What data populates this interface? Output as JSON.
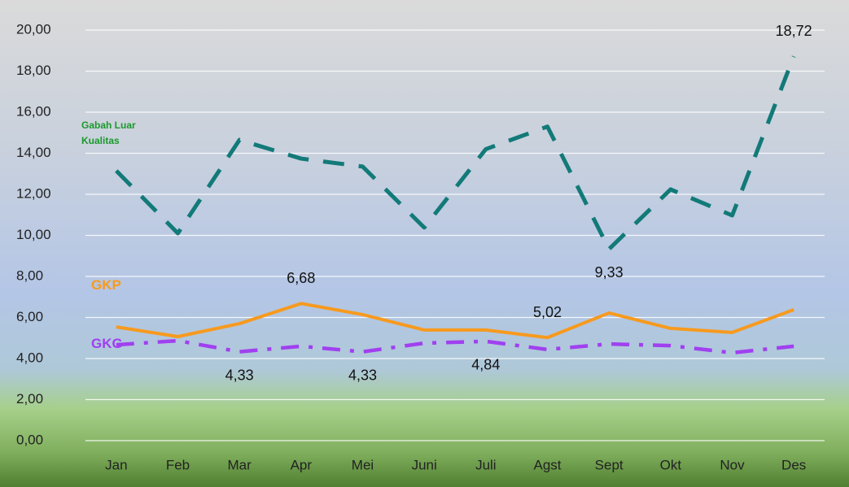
{
  "chart_data": {
    "type": "line",
    "categories": [
      "Jan",
      "Feb",
      "Mar",
      "Apr",
      "Mei",
      "Juni",
      "Juli",
      "Agst",
      "Sept",
      "Okt",
      "Nov",
      "Des"
    ],
    "series": [
      {
        "name": "Gabah Luar Kualitas",
        "color": "#127a78",
        "dash": "dashed",
        "values": [
          13.15,
          10.1,
          14.65,
          13.74,
          13.35,
          10.38,
          14.2,
          15.3,
          9.33,
          12.24,
          10.97,
          18.72
        ],
        "value_labels": [
          null,
          null,
          null,
          null,
          null,
          null,
          null,
          null,
          "9,33",
          null,
          null,
          "18,72"
        ]
      },
      {
        "name": "GKP",
        "color": "#f79a1e",
        "dash": "solid",
        "values": [
          5.54,
          5.07,
          5.7,
          6.68,
          6.14,
          5.39,
          5.39,
          5.02,
          6.22,
          5.47,
          5.27,
          6.38
        ],
        "value_labels": [
          null,
          null,
          null,
          "6,68",
          null,
          null,
          null,
          "5,02",
          null,
          null,
          null,
          null
        ]
      },
      {
        "name": "GKG",
        "color": "#a040f0",
        "dash": "dashdot",
        "values": [
          4.67,
          4.87,
          4.33,
          4.6,
          4.33,
          4.75,
          4.84,
          4.44,
          4.71,
          4.63,
          4.28,
          4.6
        ],
        "value_labels": [
          null,
          null,
          "4,33",
          null,
          "4,33",
          null,
          "4,84",
          null,
          null,
          null,
          null,
          null
        ]
      }
    ],
    "ylim": [
      0,
      20
    ],
    "yticks": [
      {
        "value": 0,
        "label": "0,00"
      },
      {
        "value": 2,
        "label": "2,00"
      },
      {
        "value": 4,
        "label": "4,00"
      },
      {
        "value": 6,
        "label": "6,00"
      },
      {
        "value": 8,
        "label": "8,00"
      },
      {
        "value": 10,
        "label": "10,00"
      },
      {
        "value": 12,
        "label": "12,00"
      },
      {
        "value": 14,
        "label": "14,00"
      },
      {
        "value": 16,
        "label": "16,00"
      },
      {
        "value": 18,
        "label": "18,00"
      },
      {
        "value": 20,
        "label": "20,00"
      }
    ],
    "grid": true
  }
}
